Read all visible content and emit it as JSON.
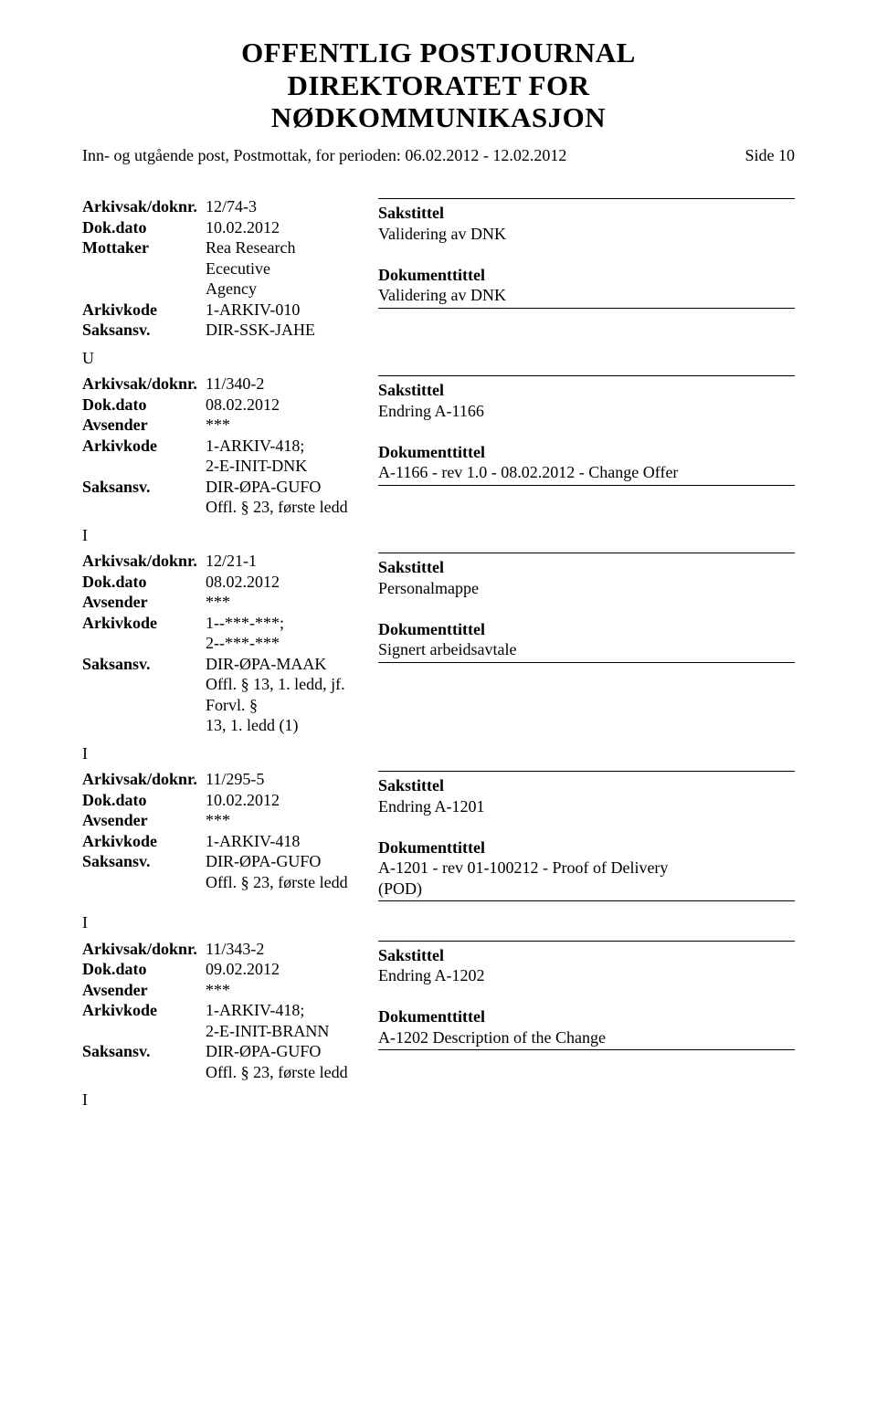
{
  "header": {
    "title_line1": "OFFENTLIG POSTJOURNAL",
    "title_line2": "DIREKTORATET FOR",
    "title_line3": "NØDKOMMUNIKASJON",
    "subheader_left": "Inn- og utgående post, Postmottak, for perioden: 06.02.2012 - 12.02.2012",
    "page_label": "Side 10"
  },
  "labels": {
    "arkivsak": "Arkivsak/doknr.",
    "dokdato": "Dok.dato",
    "mottaker": "Mottaker",
    "avsender": "Avsender",
    "arkivkode": "Arkivkode",
    "saksansv": "Saksansv.",
    "sakstittel": "Sakstittel",
    "dokumenttittel": "Dokumenttittel"
  },
  "entries": [
    {
      "marker_after": "U",
      "arkivsak": "12/74-3",
      "dokdato": "10.02.2012",
      "party_label": "Mottaker",
      "party_value_1": "Rea Research Ececutive",
      "party_value_2": "Agency",
      "arkivkode_1": "1-ARKIV-010",
      "arkivkode_2": "",
      "saksansv_1": "DIR-SSK-JAHE",
      "saksansv_2": "",
      "saksansv_3": "",
      "sakstittel": "Validering av DNK",
      "doktittel_1": "Validering av DNK",
      "doktittel_2": ""
    },
    {
      "marker_after": "I",
      "arkivsak": "11/340-2",
      "dokdato": "08.02.2012",
      "party_label": "Avsender",
      "party_value_1": "***",
      "party_value_2": "",
      "arkivkode_1": "1-ARKIV-418;",
      "arkivkode_2": "2-E-INIT-DNK",
      "saksansv_1": "DIR-ØPA-GUFO",
      "saksansv_2": "Offl. § 23, første ledd",
      "saksansv_3": "",
      "sakstittel": "Endring A-1166",
      "doktittel_1": "A-1166 - rev 1.0 - 08.02.2012 -  Change Offer",
      "doktittel_2": ""
    },
    {
      "marker_after": "I",
      "arkivsak": "12/21-1",
      "dokdato": "08.02.2012",
      "party_label": "Avsender",
      "party_value_1": "***",
      "party_value_2": "",
      "arkivkode_1": "1--***-***;",
      "arkivkode_2": "2--***-***",
      "saksansv_1": "DIR-ØPA-MAAK",
      "saksansv_2": "Offl. § 13, 1. ledd, jf. Forvl. §",
      "saksansv_3": "13, 1. ledd (1)",
      "sakstittel": "Personalmappe",
      "doktittel_1": "Signert arbeidsavtale",
      "doktittel_2": ""
    },
    {
      "marker_after": "I",
      "arkivsak": "11/295-5",
      "dokdato": "10.02.2012",
      "party_label": "Avsender",
      "party_value_1": "***",
      "party_value_2": "",
      "arkivkode_1": "1-ARKIV-418",
      "arkivkode_2": "",
      "saksansv_1": "DIR-ØPA-GUFO",
      "saksansv_2": "Offl. § 23, første ledd",
      "saksansv_3": "",
      "sakstittel": "Endring A-1201",
      "doktittel_1": "A-1201 - rev 01-100212 - Proof of Delivery",
      "doktittel_2": "(POD)"
    },
    {
      "marker_after": "I",
      "arkivsak": "11/343-2",
      "dokdato": "09.02.2012",
      "party_label": "Avsender",
      "party_value_1": "***",
      "party_value_2": "",
      "arkivkode_1": "1-ARKIV-418;",
      "arkivkode_2": "2-E-INIT-BRANN",
      "saksansv_1": "DIR-ØPA-GUFO",
      "saksansv_2": "Offl. § 23, første ledd",
      "saksansv_3": "",
      "sakstittel": "Endring A-1202",
      "doktittel_1": "A-1202  Description of the Change",
      "doktittel_2": ""
    }
  ]
}
